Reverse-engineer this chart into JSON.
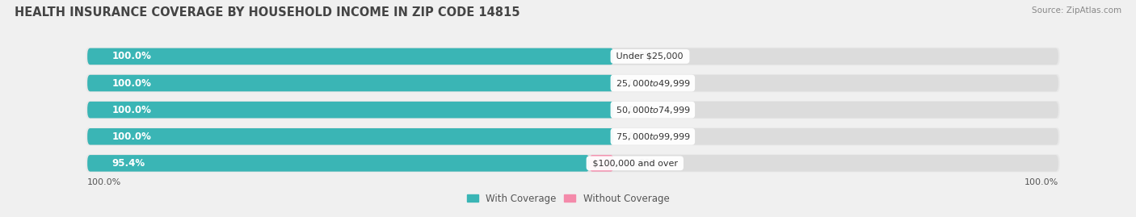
{
  "title": "HEALTH INSURANCE COVERAGE BY HOUSEHOLD INCOME IN ZIP CODE 14815",
  "source": "Source: ZipAtlas.com",
  "categories": [
    "Under $25,000",
    "$25,000 to $49,999",
    "$50,000 to $74,999",
    "$75,000 to $99,999",
    "$100,000 and over"
  ],
  "with_coverage": [
    100.0,
    100.0,
    100.0,
    100.0,
    95.4
  ],
  "without_coverage": [
    0.0,
    0.0,
    0.0,
    0.0,
    4.6
  ],
  "color_with": "#3ab5b5",
  "color_without": "#f48aaa",
  "bg_color": "#f0f0f0",
  "bar_bg_color": "#dcdcdc",
  "bar_outer_color": "#e8e8e8",
  "legend_labels": [
    "With Coverage",
    "Without Coverage"
  ],
  "title_fontsize": 10.5,
  "source_fontsize": 7.5,
  "bar_label_fontsize": 8.5,
  "category_label_fontsize": 8.0,
  "footer_label_fontsize": 8.0,
  "with_label_color": "white",
  "without_label_color": "#555555",
  "cat_label_color": "#333333",
  "title_color": "#444444",
  "source_color": "#888888",
  "footer_color": "#555555"
}
